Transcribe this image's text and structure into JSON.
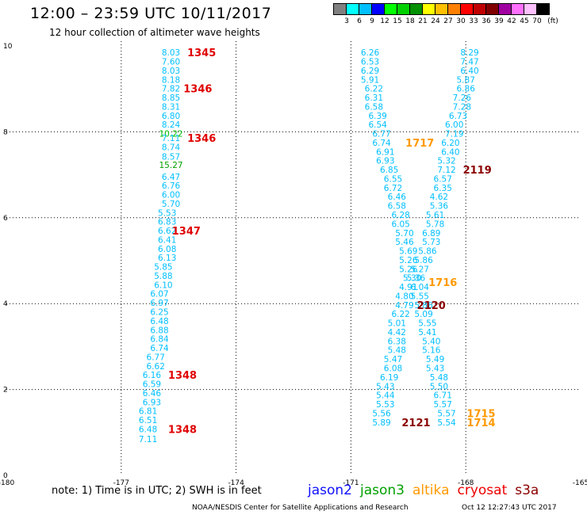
{
  "header": {
    "title": "12:00 – 23:59 UTC 10/11/2017",
    "subtitle": "12 hour collection of altimeter wave heights"
  },
  "scale": {
    "colors": [
      "#808080",
      "#00ffff",
      "#00c0ff",
      "#0000ff",
      "#00ff00",
      "#00d000",
      "#009000",
      "#ffff00",
      "#ffc000",
      "#ff8000",
      "#ff0000",
      "#c00000",
      "#800000",
      "#a000a0",
      "#ff70ff",
      "#ffc0ff",
      "#000000"
    ],
    "labels": [
      "3",
      "6",
      "9",
      "12",
      "15",
      "18",
      "21",
      "24",
      "27",
      "30",
      "33",
      "36",
      "39",
      "42",
      "45",
      "70",
      "(ft)"
    ]
  },
  "chart_data": {
    "type": "scatter",
    "xlim": [
      -180,
      -165
    ],
    "ylim": [
      0,
      10
    ],
    "x_ticks": [
      "-180",
      "-177",
      "-174",
      "-171",
      "-168",
      "-165"
    ],
    "y_ticks": [
      "0",
      "2",
      "4",
      "6",
      "8",
      "10"
    ],
    "grid": true,
    "track_points": [
      {
        "x": -175.7,
        "y": 9.85,
        "v": "8.03",
        "c": "#00bfff"
      },
      {
        "x": -175.7,
        "y": 9.64,
        "v": "7.60",
        "c": "#00bfff"
      },
      {
        "x": -175.7,
        "y": 9.43,
        "v": "8.03",
        "c": "#00bfff"
      },
      {
        "x": -175.7,
        "y": 9.22,
        "v": "8.18",
        "c": "#00bfff"
      },
      {
        "x": -175.7,
        "y": 9.01,
        "v": "7.82",
        "c": "#00bfff"
      },
      {
        "x": -175.7,
        "y": 8.8,
        "v": "8.85",
        "c": "#00bfff"
      },
      {
        "x": -175.7,
        "y": 8.59,
        "v": "8.31",
        "c": "#00bfff"
      },
      {
        "x": -175.7,
        "y": 8.38,
        "v": "6.80",
        "c": "#00bfff"
      },
      {
        "x": -175.7,
        "y": 8.17,
        "v": "8.24",
        "c": "#00bfff"
      },
      {
        "x": -175.7,
        "y": 7.96,
        "v": "10.22",
        "c": "#00c000"
      },
      {
        "x": -175.7,
        "y": 7.86,
        "v": "7.11",
        "c": "#00bfff"
      },
      {
        "x": -175.7,
        "y": 7.65,
        "v": "8.74",
        "c": "#00bfff"
      },
      {
        "x": -175.7,
        "y": 7.43,
        "v": "8.57",
        "c": "#00bfff"
      },
      {
        "x": -175.7,
        "y": 7.23,
        "v": "15.27",
        "c": "#00a000"
      },
      {
        "x": -175.7,
        "y": 6.96,
        "v": "6.47",
        "c": "#00bfff"
      },
      {
        "x": -175.7,
        "y": 6.75,
        "v": "6.76",
        "c": "#00bfff"
      },
      {
        "x": -175.7,
        "y": 6.54,
        "v": "6.00",
        "c": "#00bfff"
      },
      {
        "x": -175.7,
        "y": 6.33,
        "v": "5.70",
        "c": "#00bfff"
      },
      {
        "x": -175.8,
        "y": 6.12,
        "v": "5.53",
        "c": "#00bfff"
      },
      {
        "x": -175.8,
        "y": 5.91,
        "v": "6.83",
        "c": "#00bfff"
      },
      {
        "x": -175.8,
        "y": 5.7,
        "v": "6.62",
        "c": "#00bfff"
      },
      {
        "x": -175.8,
        "y": 5.49,
        "v": "6.41",
        "c": "#00bfff"
      },
      {
        "x": -175.8,
        "y": 5.28,
        "v": "6.08",
        "c": "#00bfff"
      },
      {
        "x": -175.8,
        "y": 5.07,
        "v": "6.13",
        "c": "#00bfff"
      },
      {
        "x": -175.9,
        "y": 4.86,
        "v": "5.85",
        "c": "#00bfff"
      },
      {
        "x": -175.9,
        "y": 4.65,
        "v": "5.88",
        "c": "#00bfff"
      },
      {
        "x": -175.9,
        "y": 4.44,
        "v": "6.10",
        "c": "#00bfff"
      },
      {
        "x": -176.0,
        "y": 4.23,
        "v": "6.07",
        "c": "#00bfff"
      },
      {
        "x": -176.0,
        "y": 4.02,
        "v": "6.97",
        "c": "#00bfff"
      },
      {
        "x": -176.0,
        "y": 3.81,
        "v": "6.25",
        "c": "#00bfff"
      },
      {
        "x": -176.0,
        "y": 3.6,
        "v": "6.48",
        "c": "#00bfff"
      },
      {
        "x": -176.0,
        "y": 3.39,
        "v": "6.88",
        "c": "#00bfff"
      },
      {
        "x": -176.0,
        "y": 3.18,
        "v": "6.84",
        "c": "#00bfff"
      },
      {
        "x": -176.0,
        "y": 2.97,
        "v": "6.74",
        "c": "#00bfff"
      },
      {
        "x": -176.1,
        "y": 2.76,
        "v": "6.77",
        "c": "#00bfff"
      },
      {
        "x": -176.1,
        "y": 2.55,
        "v": "6.62",
        "c": "#00bfff"
      },
      {
        "x": -176.2,
        "y": 2.34,
        "v": "6.16",
        "c": "#00bfff"
      },
      {
        "x": -176.2,
        "y": 2.13,
        "v": "6.59",
        "c": "#00bfff"
      },
      {
        "x": -176.2,
        "y": 1.92,
        "v": "6.46",
        "c": "#00bfff"
      },
      {
        "x": -176.2,
        "y": 1.71,
        "v": "6.93",
        "c": "#00bfff"
      },
      {
        "x": -176.3,
        "y": 1.5,
        "v": "6.81",
        "c": "#00bfff"
      },
      {
        "x": -176.3,
        "y": 1.29,
        "v": "6.51",
        "c": "#00bfff"
      },
      {
        "x": -176.3,
        "y": 1.08,
        "v": "6.48",
        "c": "#00bfff"
      },
      {
        "x": -176.3,
        "y": 0.85,
        "v": "7.11",
        "c": "#00bfff"
      },
      {
        "x": -170.5,
        "y": 9.85,
        "v": "6.26",
        "c": "#00bfff"
      },
      {
        "x": -170.5,
        "y": 9.64,
        "v": "6.53",
        "c": "#00bfff"
      },
      {
        "x": -170.5,
        "y": 9.43,
        "v": "6.29",
        "c": "#00bfff"
      },
      {
        "x": -170.5,
        "y": 9.22,
        "v": "5.91",
        "c": "#00bfff"
      },
      {
        "x": -170.4,
        "y": 9.01,
        "v": "6.22",
        "c": "#00bfff"
      },
      {
        "x": -170.4,
        "y": 8.8,
        "v": "6.31",
        "c": "#00bfff"
      },
      {
        "x": -170.4,
        "y": 8.59,
        "v": "6.58",
        "c": "#00bfff"
      },
      {
        "x": -170.3,
        "y": 8.38,
        "v": "6.39",
        "c": "#00bfff"
      },
      {
        "x": -170.3,
        "y": 8.17,
        "v": "6.54",
        "c": "#00bfff"
      },
      {
        "x": -170.2,
        "y": 7.96,
        "v": "6.77",
        "c": "#00bfff"
      },
      {
        "x": -170.2,
        "y": 7.75,
        "v": "6.74",
        "c": "#00bfff"
      },
      {
        "x": -170.1,
        "y": 7.54,
        "v": "6.91",
        "c": "#00bfff"
      },
      {
        "x": -170.1,
        "y": 7.33,
        "v": "6.93",
        "c": "#00bfff"
      },
      {
        "x": -170.0,
        "y": 7.12,
        "v": "6.85",
        "c": "#00bfff"
      },
      {
        "x": -169.9,
        "y": 6.91,
        "v": "6.55",
        "c": "#00bfff"
      },
      {
        "x": -169.9,
        "y": 6.7,
        "v": "6.72",
        "c": "#00bfff"
      },
      {
        "x": -169.8,
        "y": 6.49,
        "v": "6.46",
        "c": "#00bfff"
      },
      {
        "x": -169.8,
        "y": 6.28,
        "v": "6.58",
        "c": "#00bfff"
      },
      {
        "x": -169.7,
        "y": 6.07,
        "v": "6.28",
        "c": "#00bfff"
      },
      {
        "x": -169.7,
        "y": 5.86,
        "v": "6.05",
        "c": "#00bfff"
      },
      {
        "x": -169.6,
        "y": 5.65,
        "v": "5.70",
        "c": "#00bfff"
      },
      {
        "x": -169.6,
        "y": 5.44,
        "v": "5.46",
        "c": "#00bfff"
      },
      {
        "x": -169.5,
        "y": 5.23,
        "v": "5.69",
        "c": "#00bfff"
      },
      {
        "x": -169.5,
        "y": 5.02,
        "v": "5.26",
        "c": "#00bfff"
      },
      {
        "x": -169.5,
        "y": 4.81,
        "v": "5.26",
        "c": "#00bfff"
      },
      {
        "x": -169.4,
        "y": 4.6,
        "v": "5.30",
        "c": "#00bfff"
      },
      {
        "x": -169.5,
        "y": 4.39,
        "v": "4.91",
        "c": "#00bfff"
      },
      {
        "x": -169.6,
        "y": 4.18,
        "v": "4.80",
        "c": "#00bfff"
      },
      {
        "x": -169.6,
        "y": 3.97,
        "v": "4.79",
        "c": "#00bfff"
      },
      {
        "x": -169.7,
        "y": 3.76,
        "v": "6.22",
        "c": "#00bfff"
      },
      {
        "x": -169.8,
        "y": 3.55,
        "v": "5.01",
        "c": "#00bfff"
      },
      {
        "x": -169.8,
        "y": 3.34,
        "v": "4.42",
        "c": "#00bfff"
      },
      {
        "x": -169.8,
        "y": 3.13,
        "v": "6.38",
        "c": "#00bfff"
      },
      {
        "x": -169.8,
        "y": 2.92,
        "v": "5.48",
        "c": "#00bfff"
      },
      {
        "x": -169.9,
        "y": 2.71,
        "v": "5.47",
        "c": "#00bfff"
      },
      {
        "x": -169.9,
        "y": 2.5,
        "v": "6.08",
        "c": "#00bfff"
      },
      {
        "x": -170.0,
        "y": 2.29,
        "v": "6.19",
        "c": "#00bfff"
      },
      {
        "x": -170.1,
        "y": 2.08,
        "v": "5.43",
        "c": "#00bfff"
      },
      {
        "x": -170.1,
        "y": 1.87,
        "v": "5.44",
        "c": "#00bfff"
      },
      {
        "x": -170.1,
        "y": 1.66,
        "v": "5.53",
        "c": "#00bfff"
      },
      {
        "x": -170.2,
        "y": 1.45,
        "v": "5.56",
        "c": "#00bfff"
      },
      {
        "x": -170.2,
        "y": 1.24,
        "v": "5.89",
        "c": "#00bfff"
      },
      {
        "x": -167.9,
        "y": 9.85,
        "v": "8.29",
        "c": "#00bfff"
      },
      {
        "x": -167.9,
        "y": 9.64,
        "v": "7.47",
        "c": "#00bfff"
      },
      {
        "x": -167.9,
        "y": 9.43,
        "v": "6.40",
        "c": "#00bfff"
      },
      {
        "x": -168.0,
        "y": 9.22,
        "v": "5.87",
        "c": "#00bfff"
      },
      {
        "x": -168.0,
        "y": 9.01,
        "v": "6.86",
        "c": "#00bfff"
      },
      {
        "x": -168.1,
        "y": 8.8,
        "v": "7.26",
        "c": "#00bfff"
      },
      {
        "x": -168.1,
        "y": 8.59,
        "v": "7.28",
        "c": "#00bfff"
      },
      {
        "x": -168.2,
        "y": 8.38,
        "v": "6.73",
        "c": "#00bfff"
      },
      {
        "x": -168.3,
        "y": 8.17,
        "v": "6.00",
        "c": "#00bfff"
      },
      {
        "x": -168.3,
        "y": 7.96,
        "v": "7.19",
        "c": "#00bfff"
      },
      {
        "x": -168.4,
        "y": 7.75,
        "v": "6.20",
        "c": "#00bfff"
      },
      {
        "x": -168.4,
        "y": 7.54,
        "v": "6.40",
        "c": "#00bfff"
      },
      {
        "x": -168.5,
        "y": 7.33,
        "v": "5.32",
        "c": "#00bfff"
      },
      {
        "x": -168.5,
        "y": 7.12,
        "v": "7.12",
        "c": "#00bfff"
      },
      {
        "x": -168.6,
        "y": 6.91,
        "v": "6.57",
        "c": "#00bfff"
      },
      {
        "x": -168.6,
        "y": 6.7,
        "v": "6.35",
        "c": "#00bfff"
      },
      {
        "x": -168.7,
        "y": 6.49,
        "v": "4.62",
        "c": "#00bfff"
      },
      {
        "x": -168.7,
        "y": 6.28,
        "v": "5.36",
        "c": "#00bfff"
      },
      {
        "x": -168.8,
        "y": 6.07,
        "v": "5.61",
        "c": "#00bfff"
      },
      {
        "x": -168.8,
        "y": 5.86,
        "v": "5.78",
        "c": "#00bfff"
      },
      {
        "x": -168.9,
        "y": 5.65,
        "v": "6.89",
        "c": "#00bfff"
      },
      {
        "x": -168.9,
        "y": 5.44,
        "v": "5.73",
        "c": "#00bfff"
      },
      {
        "x": -169.0,
        "y": 5.23,
        "v": "5.86",
        "c": "#00bfff"
      },
      {
        "x": -169.1,
        "y": 5.02,
        "v": "5.86",
        "c": "#00bfff"
      },
      {
        "x": -169.2,
        "y": 4.81,
        "v": "5.27",
        "c": "#00bfff"
      },
      {
        "x": -169.3,
        "y": 4.6,
        "v": "5.36",
        "c": "#00bfff"
      },
      {
        "x": -169.2,
        "y": 4.39,
        "v": "6.04",
        "c": "#00bfff"
      },
      {
        "x": -169.2,
        "y": 4.18,
        "v": "5.55",
        "c": "#00bfff"
      },
      {
        "x": -169.1,
        "y": 3.97,
        "v": "5.86",
        "c": "#00bfff"
      },
      {
        "x": -169.1,
        "y": 3.76,
        "v": "5.09",
        "c": "#00bfff"
      },
      {
        "x": -169.0,
        "y": 3.55,
        "v": "5.55",
        "c": "#00bfff"
      },
      {
        "x": -169.0,
        "y": 3.34,
        "v": "5.41",
        "c": "#00bfff"
      },
      {
        "x": -168.9,
        "y": 3.13,
        "v": "5.40",
        "c": "#00bfff"
      },
      {
        "x": -168.9,
        "y": 2.92,
        "v": "5.16",
        "c": "#00bfff"
      },
      {
        "x": -168.8,
        "y": 2.71,
        "v": "5.49",
        "c": "#00bfff"
      },
      {
        "x": -168.8,
        "y": 2.5,
        "v": "5.43",
        "c": "#00bfff"
      },
      {
        "x": -168.7,
        "y": 2.29,
        "v": "5.48",
        "c": "#00bfff"
      },
      {
        "x": -168.7,
        "y": 2.08,
        "v": "5.50",
        "c": "#00bfff"
      },
      {
        "x": -168.6,
        "y": 1.87,
        "v": "6.71",
        "c": "#00bfff"
      },
      {
        "x": -168.6,
        "y": 1.66,
        "v": "5.57",
        "c": "#00bfff"
      },
      {
        "x": -168.5,
        "y": 1.45,
        "v": "5.57",
        "c": "#00bfff"
      },
      {
        "x": -168.5,
        "y": 1.24,
        "v": "5.54",
        "c": "#00bfff"
      }
    ],
    "time_labels": [
      {
        "x": -174.9,
        "y": 9.85,
        "t": "1345",
        "c": "#e00000"
      },
      {
        "x": -175.0,
        "y": 9.01,
        "t": "1346",
        "c": "#e00000"
      },
      {
        "x": -174.9,
        "y": 7.86,
        "t": "1346",
        "c": "#e00000"
      },
      {
        "x": -175.3,
        "y": 5.7,
        "t": "1347",
        "c": "#e00000"
      },
      {
        "x": -175.4,
        "y": 2.34,
        "t": "1348",
        "c": "#e00000"
      },
      {
        "x": -175.4,
        "y": 1.08,
        "t": "1348",
        "c": "#e00000"
      },
      {
        "x": -169.2,
        "y": 7.75,
        "t": "1717",
        "c": "#ff9900"
      },
      {
        "x": -167.7,
        "y": 7.12,
        "t": "2119",
        "c": "#8b0000"
      },
      {
        "x": -168.6,
        "y": 4.5,
        "t": "1716",
        "c": "#ff9900"
      },
      {
        "x": -168.9,
        "y": 3.97,
        "t": "2120",
        "c": "#8b0000"
      },
      {
        "x": -169.3,
        "y": 1.24,
        "t": "2121",
        "c": "#8b0000"
      },
      {
        "x": -167.6,
        "y": 1.45,
        "t": "1715",
        "c": "#ff9900"
      },
      {
        "x": -167.6,
        "y": 1.24,
        "t": "1714",
        "c": "#ff9900"
      }
    ]
  },
  "footer": {
    "note": "note: 1) Time is in UTC; 2) SWH is in feet",
    "legend": [
      {
        "label": "jason2",
        "color": "#1010ff"
      },
      {
        "label": "jason3",
        "color": "#00a000"
      },
      {
        "label": "altika",
        "color": "#ff9900"
      },
      {
        "label": "cryosat",
        "color": "#ee0000"
      },
      {
        "label": "s3a",
        "color": "#8b0000"
      }
    ],
    "credit": "NOAA/NESDIS Center for Satellite Applications and Research",
    "timestamp": "Oct 12 12:27:43 UTC 2017"
  }
}
